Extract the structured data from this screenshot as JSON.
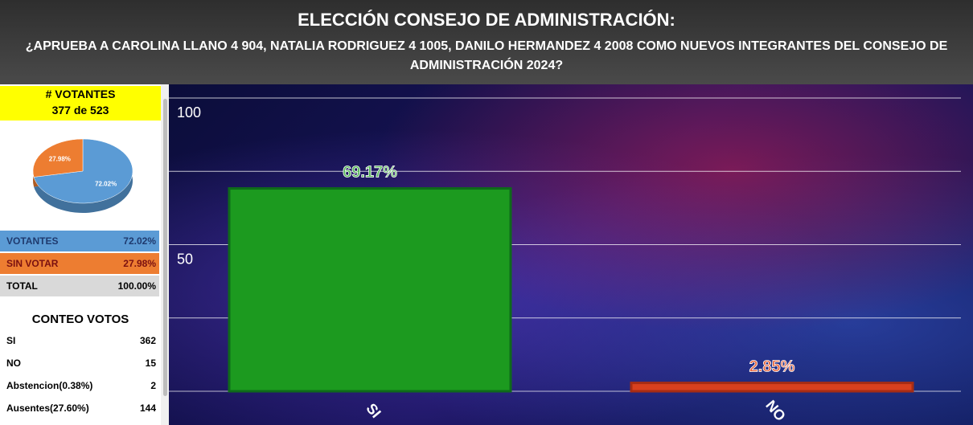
{
  "header": {
    "title": "ELECCIÓN CONSEJO DE ADMINISTRACIÓN:",
    "subtitle": "¿APRUEBA A CAROLINA LLANO 4 904, NATALIA RODRIGUEZ 4 1005, DANILO HERMANDEZ 4 2008 COMO NUEVOS INTEGRANTES DEL CONSEJO DE ADMINISTRACIÓN 2024?"
  },
  "voters": {
    "label": "# VOTANTES",
    "count": "377 de 523"
  },
  "participation_chart": {
    "type": "pie",
    "values": [
      72.02,
      27.98
    ],
    "value_labels": [
      "72.02%",
      "27.98%"
    ],
    "colors": [
      "#5b9bd5",
      "#ed7d31"
    ]
  },
  "participation_table": {
    "rows": [
      [
        "VOTANTES",
        "72.02%"
      ],
      [
        "SIN VOTAR",
        "27.98%"
      ],
      [
        "TOTAL",
        "100.00%"
      ]
    ],
    "colors": [
      "#5b9bd5",
      "#ed7d31",
      "#d9d9d9"
    ]
  },
  "vote_count": {
    "title": "CONTEO VOTOS",
    "rows": [
      [
        "SI",
        362
      ],
      [
        "NO",
        15
      ],
      [
        "Abstencion(0.38%)",
        2
      ],
      [
        "Ausentes(27.60%)",
        144
      ]
    ]
  },
  "chart_data": {
    "type": "bar",
    "categories": [
      "SI",
      "NO"
    ],
    "values": [
      69.17,
      2.85
    ],
    "value_labels": [
      "69.17%",
      "2.85%"
    ],
    "colors": [
      "#1c9a1f",
      "#d8401e"
    ],
    "ylim": [
      0,
      100
    ],
    "yticks": [
      {
        "value": 25,
        "label": null
      },
      50,
      {
        "value": 75,
        "label": null
      },
      100
    ],
    "grid": true
  }
}
